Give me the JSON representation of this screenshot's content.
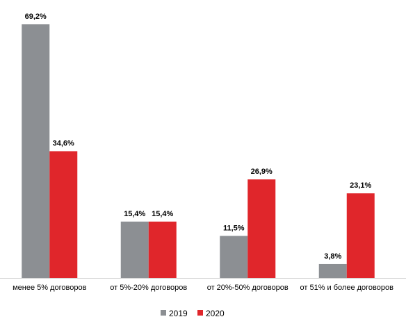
{
  "chart_data": {
    "type": "bar",
    "categories": [
      "менее 5% договоров",
      "от 5%-20% договоров",
      "от 20%-50% договоров",
      "от 51% и более договоров"
    ],
    "series": [
      {
        "name": "2019",
        "values": [
          69.2,
          15.4,
          11.5,
          3.8
        ],
        "labels": [
          "69,2%",
          "15,4%",
          "11,5%",
          "3,8%"
        ],
        "color": "#8c8f93"
      },
      {
        "name": "2020",
        "values": [
          34.6,
          15.4,
          26.9,
          23.1
        ],
        "labels": [
          "34,6%",
          "15,4%",
          "26,9%",
          "23,1%"
        ],
        "color": "#e0262b"
      }
    ],
    "ylim": [
      0,
      69.2
    ],
    "grid": false,
    "legend_position": "bottom"
  }
}
